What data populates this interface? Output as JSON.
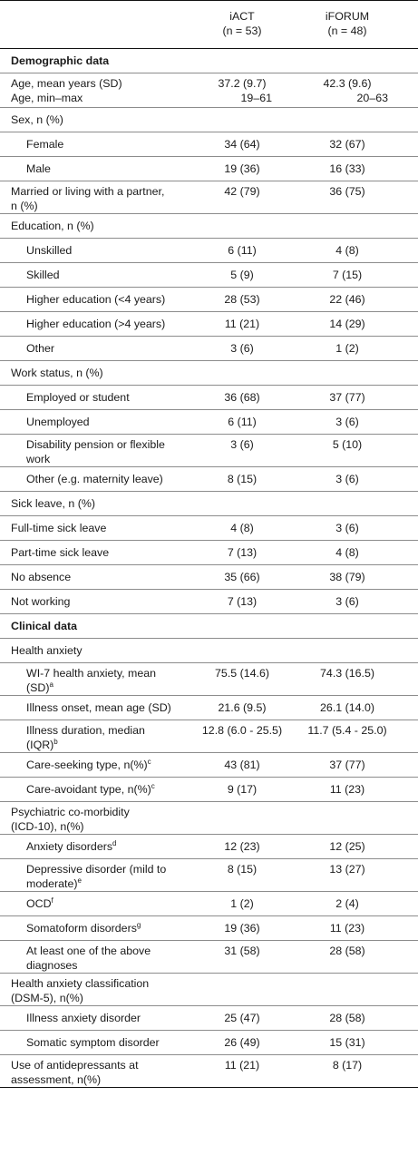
{
  "header": {
    "col1_name": "iACT",
    "col1_n": "(n = 53)",
    "col2_name": "iFORUM",
    "col2_n": "(n = 48)"
  },
  "rows": [
    {
      "label": "Demographic data",
      "bold": true,
      "h": 27
    },
    {
      "label": "Age, mean years (SD)",
      "label2": "Age, min–max",
      "v1": "37.2 (9.7)",
      "v2": "42.3 (9.6)",
      "v1b": "19–61",
      "v2b": "20–63",
      "h": 38,
      "two": true
    },
    {
      "label": "Sex, n (%)",
      "h": 27
    },
    {
      "label": "Female",
      "indent": true,
      "v1": "34 (64)",
      "v2": "32 (67)",
      "h": 27
    },
    {
      "label": "Male",
      "indent": true,
      "v1": "19 (36)",
      "v2": "16 (33)",
      "h": 27
    },
    {
      "label": "Married or living with a partner,",
      "label2": "n (%)",
      "v1": "42 (79)",
      "v2": "36 (75)",
      "h": 36
    },
    {
      "label": "Education, n (%)",
      "h": 27
    },
    {
      "label": "Unskilled",
      "indent": true,
      "v1": "6 (11)",
      "v2": "4 (8)",
      "h": 27
    },
    {
      "label": "Skilled",
      "indent": true,
      "v1": "5 (9)",
      "v2": "7 (15)",
      "h": 27
    },
    {
      "label": "Higher education (<4 years)",
      "indent": true,
      "v1": "28 (53)",
      "v2": "22 (46)",
      "h": 27
    },
    {
      "label": "Higher education (>4 years)",
      "indent": true,
      "v1": "11 (21)",
      "v2": "14 (29)",
      "h": 27
    },
    {
      "label": "Other",
      "indent": true,
      "v1": "3 (6)",
      "v2": "1 (2)",
      "h": 27
    },
    {
      "label": "Work status, n (%)",
      "h": 27
    },
    {
      "label": "Employed or student",
      "indent": true,
      "v1": "36 (68)",
      "v2": "37 (77)",
      "h": 27
    },
    {
      "label": "Unemployed",
      "indent": true,
      "v1": "6 (11)",
      "v2": "3 (6)",
      "h": 27
    },
    {
      "label": "Disability pension or flexible",
      "label2": "work",
      "indent": true,
      "v1": "3 (6)",
      "v2": "5 (10)",
      "h": 36
    },
    {
      "label": "Other (e.g. maternity leave)",
      "indent": true,
      "v1": "8 (15)",
      "v2": "3 (6)",
      "h": 27
    },
    {
      "label": "Sick leave, n (%)",
      "h": 27
    },
    {
      "label": "Full-time sick leave",
      "v1": "4 (8)",
      "v2": "3 (6)",
      "h": 27
    },
    {
      "label": "Part-time sick leave",
      "v1": "7 (13)",
      "v2": "4 (8)",
      "h": 27
    },
    {
      "label": "No absence",
      "v1": "35 (66)",
      "v2": "38 (79)",
      "h": 27
    },
    {
      "label": "Not working",
      "v1": "7 (13)",
      "v2": "3 (6)",
      "h": 27
    },
    {
      "label": "Clinical data",
      "bold": true,
      "h": 27
    },
    {
      "label": "Health anxiety",
      "h": 27
    },
    {
      "label": "WI-7 health anxiety, mean",
      "label2": "(SD)",
      "sup2": "a",
      "indent": true,
      "v1": "75.5 (14.6)",
      "v2": "74.3 (16.5)",
      "h": 36
    },
    {
      "label": "Illness onset, mean age (SD)",
      "indent": true,
      "v1": "21.6 (9.5)",
      "v2": "26.1 (14.0)",
      "h": 27
    },
    {
      "label": "Illness duration, median",
      "label2": "(IQR)",
      "sup2": "b",
      "indent": true,
      "v1": "12.8 (6.0 - 25.5)",
      "v2": "11.7 (5.4 - 25.0)",
      "h": 36
    },
    {
      "label": "Care-seeking type, n(%)",
      "sup": "c",
      "indent": true,
      "v1": "43 (81)",
      "v2": "37 (77)",
      "h": 27
    },
    {
      "label": "Care-avoidant type, n(%)",
      "sup": "c",
      "indent": true,
      "v1": "9 (17)",
      "v2": "11 (23)",
      "h": 27
    },
    {
      "label": "Psychiatric co-morbidity",
      "label2": "(ICD-10), n(%)",
      "h": 36
    },
    {
      "label": "Anxiety disorders",
      "sup": "d",
      "indent": true,
      "v1": "12 (23)",
      "v2": "12 (25)",
      "h": 27
    },
    {
      "label": "Depressive disorder (mild to",
      "label2": "moderate)",
      "sup2": "e",
      "indent": true,
      "v1": "8 (15)",
      "v2": "13 (27)",
      "h": 36
    },
    {
      "label": "OCD",
      "sup": "f",
      "indent": true,
      "v1": "1 (2)",
      "v2": "2 (4)",
      "h": 27
    },
    {
      "label": "Somatoform disorders",
      "sup": "g",
      "indent": true,
      "v1": "19 (36)",
      "v2": "11 (23)",
      "h": 27
    },
    {
      "label": "At least one of the above",
      "label2": "diagnoses",
      "indent": true,
      "v1": "31 (58)",
      "v2": "28 (58)",
      "h": 36
    },
    {
      "label": "Health anxiety classification",
      "label2": "(DSM-5), n(%)",
      "h": 36
    },
    {
      "label": "Illness anxiety disorder",
      "indent": true,
      "v1": "25 (47)",
      "v2": "28 (58)",
      "h": 27
    },
    {
      "label": "Somatic symptom disorder",
      "indent": true,
      "v1": "26 (49)",
      "v2": "15 (31)",
      "h": 27
    },
    {
      "label": "Use of antidepressants at",
      "label2": "assessment, n(%)",
      "v1": "11 (21)",
      "v2": "8 (17)",
      "h": 36
    }
  ]
}
